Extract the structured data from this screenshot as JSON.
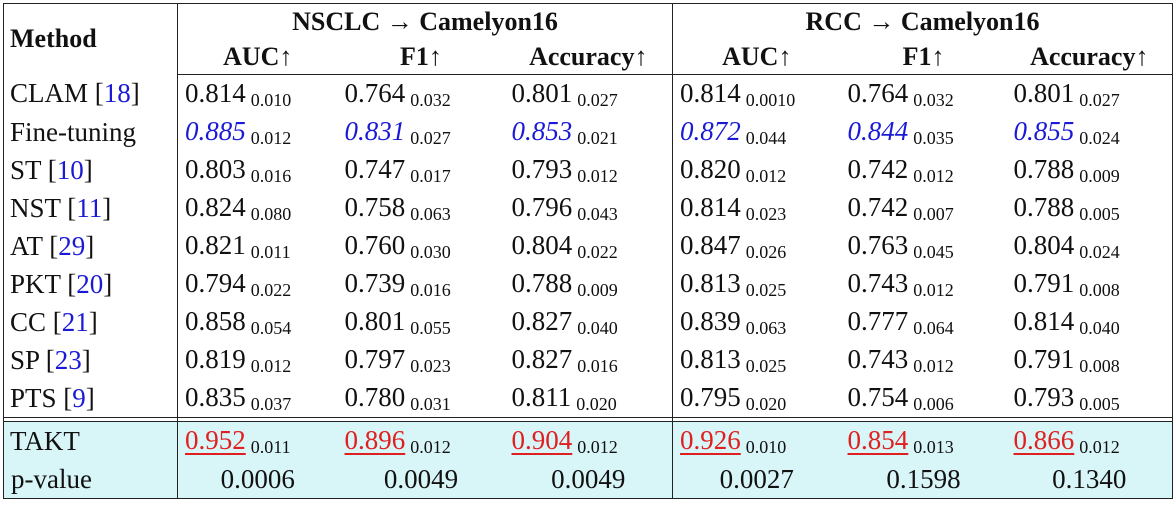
{
  "header": {
    "method": "Method",
    "groups": [
      "NSCLC → Camelyon16",
      "RCC → Camelyon16"
    ],
    "metrics": [
      "AUC↑",
      "F1↑",
      "Accuracy↑",
      "AUC↑",
      "F1↑",
      "Accuracy↑"
    ]
  },
  "rows": [
    {
      "method": [
        "CLAM [",
        "18",
        "]"
      ],
      "cells": [
        {
          "mean": "0.814",
          "std": "0.010"
        },
        {
          "mean": "0.764",
          "std": "0.032"
        },
        {
          "mean": "0.801",
          "std": "0.027"
        },
        {
          "mean": "0.814",
          "std": "0.0010"
        },
        {
          "mean": "0.764",
          "std": "0.032"
        },
        {
          "mean": "0.801",
          "std": "0.027"
        }
      ]
    },
    {
      "method": [
        "Fine-tuning"
      ],
      "cells": [
        {
          "mean": "0.885",
          "std": "0.012"
        },
        {
          "mean": "0.831",
          "std": "0.027"
        },
        {
          "mean": "0.853",
          "std": "0.021"
        },
        {
          "mean": "0.872",
          "std": "0.044"
        },
        {
          "mean": "0.844",
          "std": "0.035"
        },
        {
          "mean": "0.855",
          "std": "0.024"
        }
      ]
    },
    {
      "method": [
        "ST [",
        "10",
        "]"
      ],
      "cells": [
        {
          "mean": "0.803",
          "std": "0.016"
        },
        {
          "mean": "0.747",
          "std": "0.017"
        },
        {
          "mean": "0.793",
          "std": "0.012"
        },
        {
          "mean": "0.820",
          "std": "0.012"
        },
        {
          "mean": "0.742",
          "std": "0.012"
        },
        {
          "mean": "0.788",
          "std": "0.009"
        }
      ]
    },
    {
      "method": [
        "NST [",
        "11",
        "]"
      ],
      "cells": [
        {
          "mean": "0.824",
          "std": "0.080"
        },
        {
          "mean": "0.758",
          "std": "0.063"
        },
        {
          "mean": "0.796",
          "std": "0.043"
        },
        {
          "mean": "0.814",
          "std": "0.023"
        },
        {
          "mean": "0.742",
          "std": "0.007"
        },
        {
          "mean": "0.788",
          "std": "0.005"
        }
      ]
    },
    {
      "method": [
        "AT [",
        "29",
        "]"
      ],
      "cells": [
        {
          "mean": "0.821",
          "std": "0.011"
        },
        {
          "mean": "0.760",
          "std": "0.030"
        },
        {
          "mean": "0.804",
          "std": "0.022"
        },
        {
          "mean": "0.847",
          "std": "0.026"
        },
        {
          "mean": "0.763",
          "std": "0.045"
        },
        {
          "mean": "0.804",
          "std": "0.024"
        }
      ]
    },
    {
      "method": [
        "PKT [",
        "20",
        "]"
      ],
      "cells": [
        {
          "mean": "0.794",
          "std": "0.022"
        },
        {
          "mean": "0.739",
          "std": "0.016"
        },
        {
          "mean": "0.788",
          "std": "0.009"
        },
        {
          "mean": "0.813",
          "std": "0.025"
        },
        {
          "mean": "0.743",
          "std": "0.012"
        },
        {
          "mean": "0.791",
          "std": "0.008"
        }
      ]
    },
    {
      "method": [
        "CC [",
        "21",
        "]"
      ],
      "cells": [
        {
          "mean": "0.858",
          "std": "0.054"
        },
        {
          "mean": "0.801",
          "std": "0.055"
        },
        {
          "mean": "0.827",
          "std": "0.040"
        },
        {
          "mean": "0.839",
          "std": "0.063"
        },
        {
          "mean": "0.777",
          "std": "0.064"
        },
        {
          "mean": "0.814",
          "std": "0.040"
        }
      ]
    },
    {
      "method": [
        "SP [",
        "23",
        "]"
      ],
      "cells": [
        {
          "mean": "0.819",
          "std": "0.012"
        },
        {
          "mean": "0.797",
          "std": "0.023"
        },
        {
          "mean": "0.827",
          "std": "0.016"
        },
        {
          "mean": "0.813",
          "std": "0.025"
        },
        {
          "mean": "0.743",
          "std": "0.012"
        },
        {
          "mean": "0.791",
          "std": "0.008"
        }
      ]
    },
    {
      "method": [
        "PTS [",
        "9",
        "]"
      ],
      "cells": [
        {
          "mean": "0.835",
          "std": "0.037"
        },
        {
          "mean": "0.780",
          "std": "0.031"
        },
        {
          "mean": "0.811",
          "std": "0.020"
        },
        {
          "mean": "0.795",
          "std": "0.020"
        },
        {
          "mean": "0.754",
          "std": "0.006"
        },
        {
          "mean": "0.793",
          "std": "0.005"
        }
      ]
    }
  ],
  "proposed": {
    "method": [
      "TAKT"
    ],
    "cells": [
      {
        "mean": "0.952",
        "std": "0.011"
      },
      {
        "mean": "0.896",
        "std": "0.012"
      },
      {
        "mean": "0.904",
        "std": "0.012"
      },
      {
        "mean": "0.926",
        "std": "0.010"
      },
      {
        "mean": "0.854",
        "std": "0.013"
      },
      {
        "mean": "0.866",
        "std": "0.012"
      }
    ]
  },
  "p_values": {
    "label": "p-value",
    "values": [
      "0.0006",
      "0.0049",
      "0.0049",
      "0.0027",
      "0.1598",
      "0.1340"
    ]
  }
}
